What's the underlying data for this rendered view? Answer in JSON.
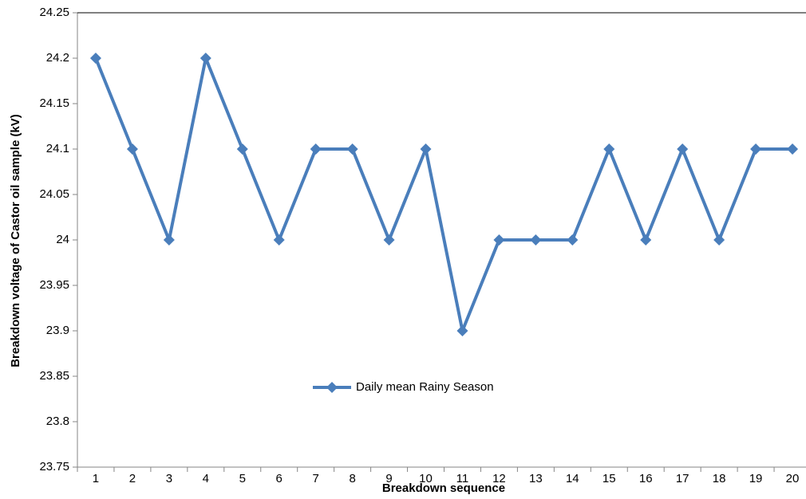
{
  "chart_data": {
    "type": "line",
    "x_label": "Breakdown sequence",
    "y_label": "Breakdown voltage of Castor oil sample (kV)",
    "categories": [
      "1",
      "2",
      "3",
      "4",
      "5",
      "6",
      "7",
      "8",
      "9",
      "10",
      "11",
      "12",
      "13",
      "14",
      "15",
      "16",
      "17",
      "18",
      "19",
      "20"
    ],
    "series": [
      {
        "name": "Daily mean Rainy Season",
        "color": "#4a7ebb",
        "values": [
          24.2,
          24.1,
          24.0,
          24.2,
          24.1,
          24.0,
          24.1,
          24.1,
          24.0,
          24.1,
          23.9,
          24.0,
          24.0,
          24.0,
          24.1,
          24.0,
          24.1,
          24.0,
          24.1,
          24.1
        ]
      }
    ],
    "ylim": [
      23.75,
      24.25
    ],
    "yticks": [
      23.75,
      23.8,
      23.85,
      23.9,
      23.95,
      24,
      24.05,
      24.1,
      24.15,
      24.2,
      24.25
    ],
    "grid": false,
    "legend": "inside"
  }
}
